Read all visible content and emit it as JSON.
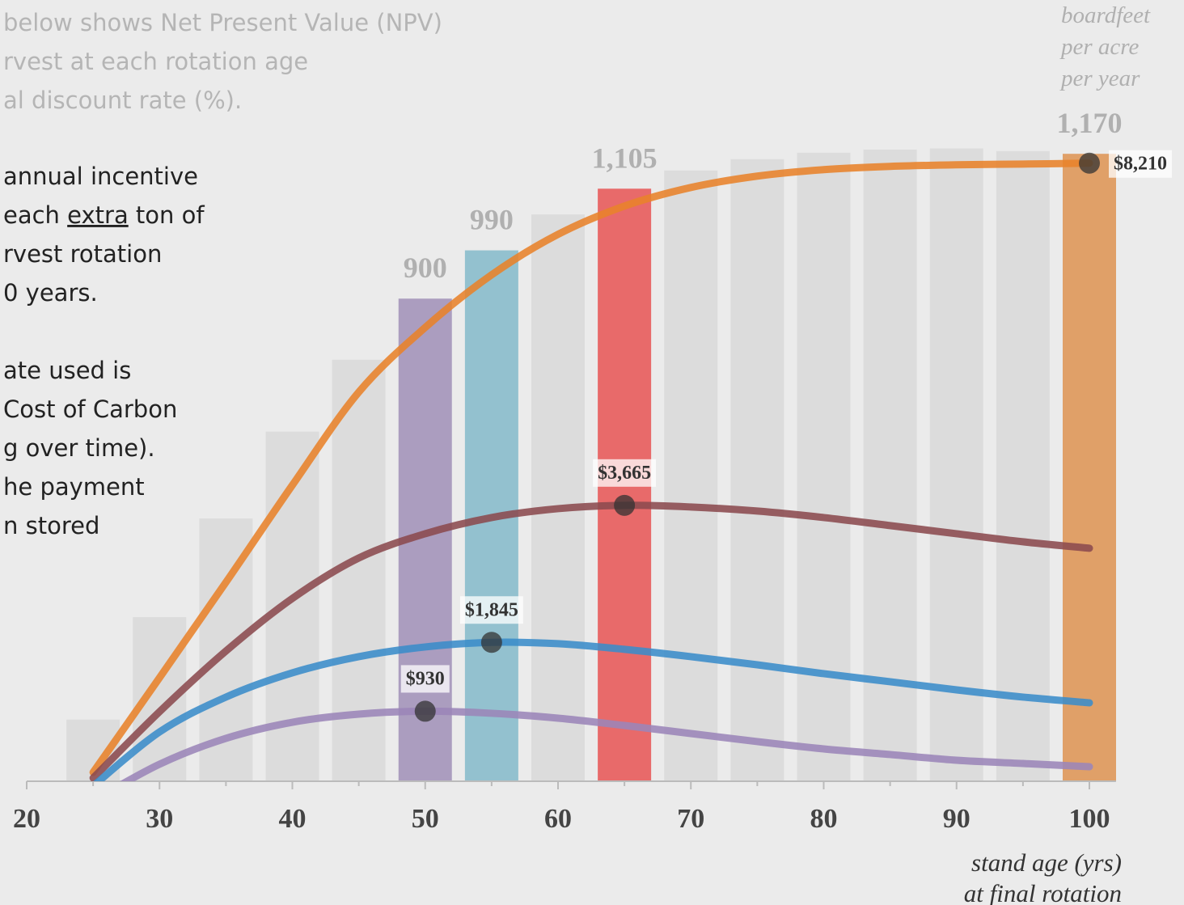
{
  "notes": {
    "intro": [
      "below shows Net Present Value (NPV)",
      "rvest at each rotation age",
      "al discount rate (%)."
    ],
    "body": [
      [
        " annual incentive"
      ],
      [
        "each ",
        {
          "text": "extra",
          "underline": true
        },
        " ton of"
      ],
      [
        "rvest rotation"
      ],
      [
        "0 years."
      ],
      [],
      [
        "ate used is"
      ],
      [
        "Cost of Carbon"
      ],
      [
        "g over time)."
      ],
      [
        "he payment"
      ],
      [
        "n stored"
      ]
    ]
  },
  "chart_data": {
    "type": "combo",
    "y_label": [
      "boardfeet",
      "per acre",
      "per year"
    ],
    "x_label": [
      "stand age (yrs)",
      "at final rotation"
    ],
    "x": [
      25,
      30,
      35,
      40,
      45,
      50,
      55,
      60,
      65,
      70,
      75,
      80,
      85,
      90,
      95,
      100
    ],
    "xlim": [
      20,
      102
    ],
    "xticks": [
      20,
      30,
      40,
      50,
      60,
      70,
      80,
      90,
      100
    ],
    "xminorticks": [
      25,
      35,
      45,
      55,
      65,
      75,
      85,
      95
    ],
    "ylim": [
      0,
      1300
    ],
    "y2lim": [
      0,
      9260
    ],
    "bars": {
      "values": [
        115,
        306,
        490,
        652,
        786,
        900,
        990,
        1057,
        1105,
        1139,
        1160,
        1172,
        1178,
        1180,
        1175,
        1170
      ],
      "value_labels": [
        null,
        null,
        null,
        null,
        null,
        "900",
        "990",
        null,
        "1,105",
        null,
        null,
        null,
        null,
        null,
        null,
        "1,170"
      ],
      "colors": [
        "#dcdcdc",
        "#dcdcdc",
        "#dcdcdc",
        "#dcdcdc",
        "#dcdcdc",
        "#ab9dbf",
        "#93c1cf",
        "#dcdcdc",
        "#e86a6a",
        "#dcdcdc",
        "#dcdcdc",
        "#dcdcdc",
        "#dcdcdc",
        "#dcdcdc",
        "#dcdcdc",
        "#e0a068"
      ]
    },
    "series": [
      {
        "color": "#e8822a",
        "axis": "y2",
        "values": [
          118,
          1375,
          2643,
          3933,
          5169,
          6028,
          6727,
          7264,
          7640,
          7887,
          8038,
          8124,
          8167,
          8188,
          8198,
          8210
        ],
        "value_labels": [
          null,
          null,
          null,
          null,
          null,
          null,
          null,
          null,
          null,
          null,
          null,
          null,
          null,
          null,
          null,
          "$8,210"
        ]
      },
      {
        "color": "#8b4a4f",
        "axis": "y2",
        "values": [
          43,
          924,
          1730,
          2429,
          2966,
          3288,
          3503,
          3621,
          3665,
          3643,
          3589,
          3503,
          3396,
          3288,
          3181,
          3095
        ],
        "value_labels": [
          null,
          null,
          null,
          null,
          null,
          null,
          null,
          null,
          "$3,665",
          null,
          null,
          null,
          null,
          null,
          null,
          null
        ]
      },
      {
        "color": "#3a8cc9",
        "axis": "y2",
        "values": [
          -64,
          655,
          1118,
          1440,
          1655,
          1784,
          1845,
          1827,
          1752,
          1655,
          1547,
          1429,
          1322,
          1214,
          1118,
          1042
        ],
        "value_labels": [
          null,
          null,
          null,
          null,
          null,
          null,
          "$1,845",
          null,
          null,
          null,
          null,
          null,
          null,
          null,
          null,
          null
        ]
      },
      {
        "color": "#9b85b8",
        "axis": "y2",
        "values": [
          -258,
          226,
          570,
          784,
          892,
          930,
          903,
          838,
          741,
          634,
          527,
          430,
          355,
          279,
          236,
          193
        ],
        "value_labels": [
          null,
          null,
          null,
          null,
          null,
          "$930",
          null,
          null,
          null,
          null,
          null,
          null,
          null,
          null,
          null,
          null
        ]
      }
    ]
  }
}
